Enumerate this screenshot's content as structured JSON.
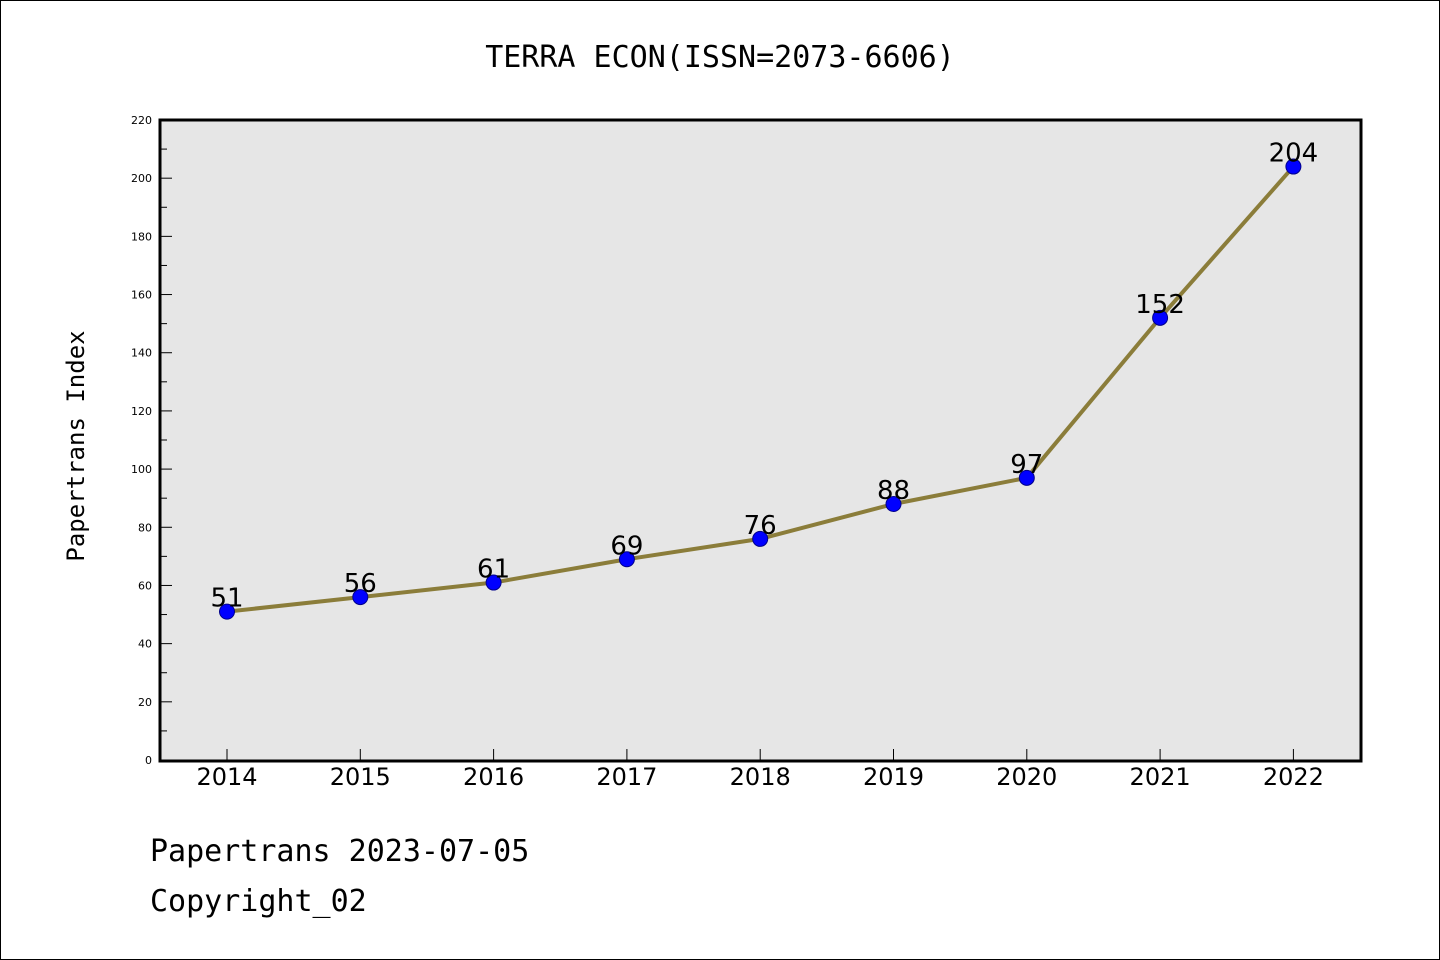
{
  "colors": {
    "plot_background": "#e6e6e6",
    "line": "#8b7d3a",
    "marker": "#0000ff",
    "marker_edge": "#00008b"
  },
  "chart_data": {
    "type": "line",
    "title": "TERRA ECON(ISSN=2073-6606)",
    "xlabel": "",
    "ylabel": "Papertrans Index",
    "categories": [
      "2014",
      "2015",
      "2016",
      "2017",
      "2018",
      "2019",
      "2020",
      "2021",
      "2022"
    ],
    "series": [
      {
        "values": [
          51,
          56,
          61,
          69,
          76,
          88,
          97,
          152,
          204
        ]
      }
    ],
    "data_labels": [
      "51",
      "56",
      "61",
      "69",
      "76",
      "88",
      "97",
      "152",
      "204"
    ],
    "ylim": [
      0,
      220
    ],
    "yticks": [
      "0",
      "20",
      "40",
      "60",
      "80",
      "100",
      "120",
      "140",
      "160",
      "180",
      "200",
      "220"
    ],
    "grid": false,
    "legend": "none"
  },
  "footer": {
    "line1": "Papertrans 2023-07-05",
    "line2": "Copyright_02"
  }
}
